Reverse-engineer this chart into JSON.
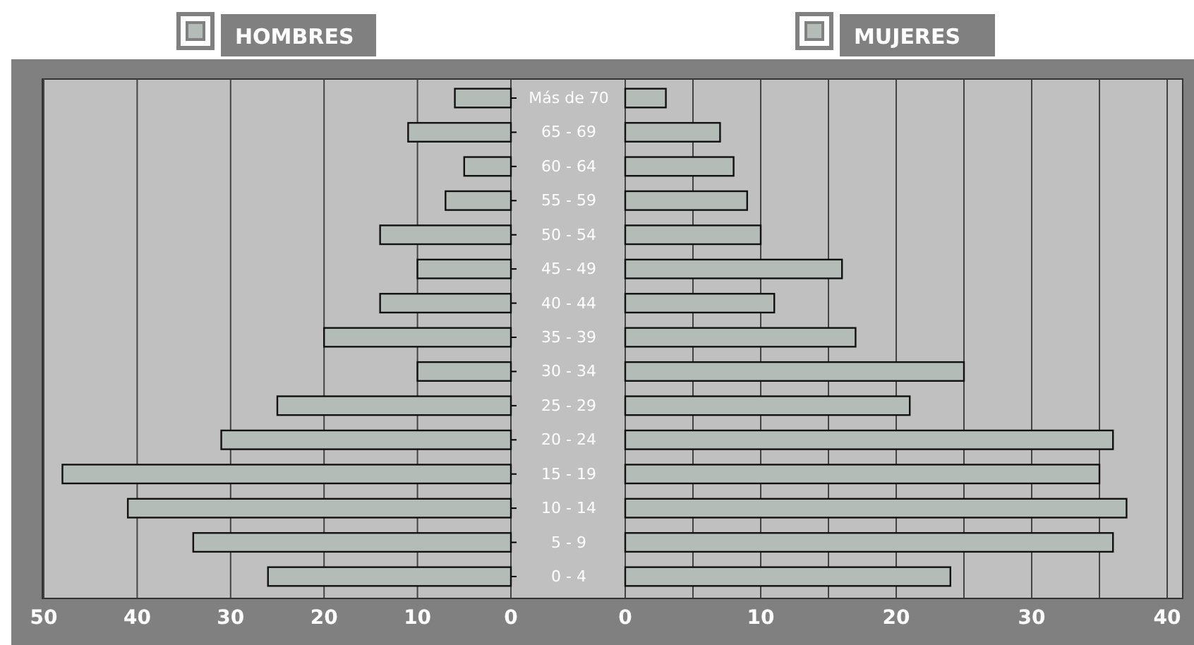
{
  "chart_data": [
    {
      "type": "bar",
      "orientation": "horizontal",
      "categories": [
        "Más de 70",
        "65 - 69",
        "60 - 64",
        "55 - 59",
        "50 - 54",
        "45 - 49",
        "40 - 44",
        "35 - 39",
        "30 - 34",
        "25 - 29",
        "20 - 24",
        "15 - 19",
        "10 - 14",
        "5 - 9",
        "0 - 4"
      ],
      "series": [
        {
          "name": "HOMBRES",
          "color": "#b4bcb8",
          "values": [
            6,
            11,
            5,
            7,
            14,
            10,
            14,
            20,
            10,
            25,
            31,
            48,
            41,
            34,
            26
          ]
        }
      ],
      "xlim": [
        50,
        0
      ],
      "xticks": [
        50,
        40,
        30,
        20,
        10,
        0
      ],
      "grid": "x",
      "legend": "top"
    },
    {
      "type": "bar",
      "orientation": "horizontal",
      "categories": [
        null,
        null,
        null,
        null,
        null,
        null,
        null,
        null,
        null,
        null,
        null,
        null,
        null,
        null,
        null
      ],
      "series": [
        {
          "name": "MUJERES",
          "color": "#b4bcb8",
          "values": [
            3,
            7,
            8,
            9,
            10,
            16,
            11,
            17,
            25,
            21,
            36,
            35,
            37,
            36,
            24
          ]
        }
      ],
      "xlim": [
        0,
        40
      ],
      "xticks": [
        0,
        {
          "value": 5,
          "label": null
        },
        10,
        {
          "value": 15,
          "label": null
        },
        20,
        {
          "value": 25,
          "label": null
        },
        30,
        {
          "value": 35,
          "label": null
        },
        40
      ],
      "grid": "x",
      "legend": "top",
      "tick_labels": "x"
    }
  ]
}
